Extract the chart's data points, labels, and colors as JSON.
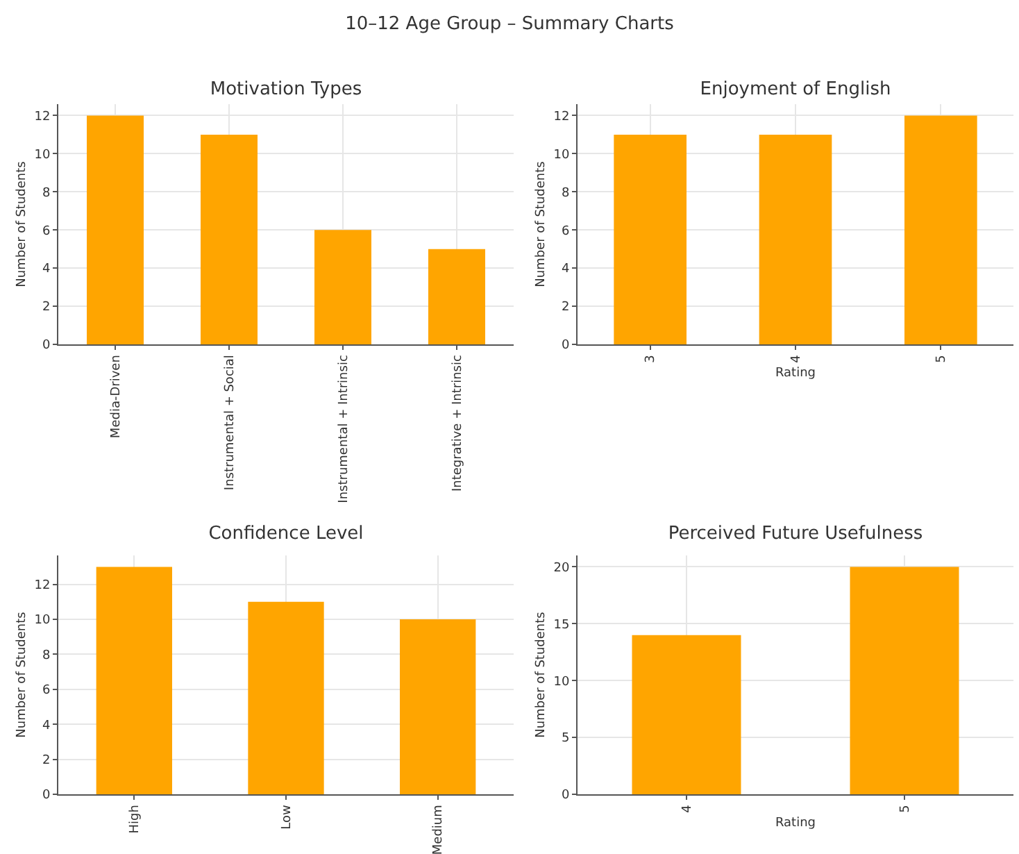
{
  "chart_data": [
    {
      "type": "bar",
      "title": "Motivation Types",
      "annotations": [
        "10–12 Age Group – Summary Charts"
      ],
      "ylabel": "Number of Students",
      "categories": [
        "Media-Driven",
        "Instrumental + Social",
        "Instrumental + Intrinsic",
        "Integrative + Intrinsic"
      ],
      "values": [
        12,
        11,
        6,
        5
      ],
      "color": "#ffa500",
      "ylim": [
        0,
        12.6
      ],
      "yticks": [
        0,
        2,
        4,
        6,
        8,
        10,
        12
      ],
      "grid": true
    },
    {
      "type": "bar",
      "title": "Enjoyment of English",
      "xlabel": "Rating",
      "ylabel": "Number of Students",
      "categories": [
        "3",
        "4",
        "5"
      ],
      "values": [
        11,
        11,
        12
      ],
      "color": "#ffa500",
      "ylim": [
        0,
        12.6
      ],
      "yticks": [
        0,
        2,
        4,
        6,
        8,
        10,
        12
      ],
      "grid": true
    },
    {
      "type": "bar",
      "title": "Confidence Level",
      "ylabel": "Number of Students",
      "categories": [
        "High",
        "Low",
        "Medium"
      ],
      "values": [
        13,
        11,
        10
      ],
      "color": "#ffa500",
      "ylim": [
        0,
        13.65
      ],
      "yticks": [
        0,
        2,
        4,
        6,
        8,
        10,
        12
      ],
      "grid": true
    },
    {
      "type": "bar",
      "title": "Perceived Future Usefulness",
      "xlabel": "Rating",
      "ylabel": "Number of Students",
      "categories": [
        "4",
        "5"
      ],
      "values": [
        14,
        20
      ],
      "color": "#ffa500",
      "ylim": [
        0,
        21
      ],
      "yticks": [
        0,
        5,
        10,
        15,
        20
      ],
      "grid": true
    }
  ]
}
